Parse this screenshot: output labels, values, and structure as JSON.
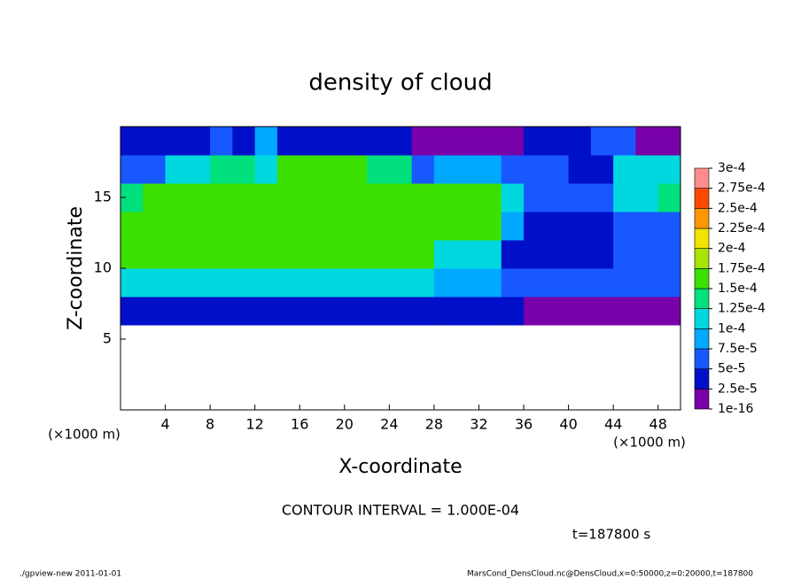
{
  "chart_data": {
    "type": "heatmap",
    "title": "density of cloud",
    "x_label": "X-coordinate",
    "y_label": "Z-coordinate",
    "x_unit": "(×1000 m)",
    "y_unit": "(×1000 m)",
    "contour_note": "CONTOUR INTERVAL = 1.000E-04",
    "time_note": "t=187800 s",
    "footer_left": "./gpview-new  2011-01-01",
    "footer_right": "MarsCond_DensCloud.nc@DensCloud,x=0:50000,z=0:20000,t=187800",
    "xlim": [
      0,
      50
    ],
    "ylim": [
      0,
      20
    ],
    "xticks": [
      4,
      8,
      12,
      16,
      20,
      24,
      28,
      32,
      36,
      40,
      44,
      48
    ],
    "yticks": [
      5,
      10,
      15
    ],
    "x_edges": [
      0,
      2,
      4,
      6,
      8,
      10,
      12,
      14,
      16,
      18,
      20,
      22,
      24,
      26,
      28,
      30,
      32,
      34,
      36,
      38,
      40,
      42,
      44,
      46,
      48,
      50
    ],
    "y_edges": [
      6,
      8,
      10,
      12,
      14,
      16,
      18,
      20
    ],
    "z": [
      [
        4e-05,
        4e-05,
        4e-05,
        4e-05,
        4e-05,
        4e-05,
        4e-05,
        4e-05,
        4e-05,
        4e-05,
        4e-05,
        4e-05,
        4e-05,
        4e-05,
        4e-05,
        4e-05,
        4e-05,
        4e-05,
        2e-05,
        2e-05,
        2e-05,
        2e-05,
        2e-05,
        2e-05,
        2e-05
      ],
      [
        0.00011,
        0.00011,
        0.00011,
        0.00011,
        0.00011,
        0.00012,
        0.00012,
        0.00012,
        0.00012,
        0.00012,
        0.00012,
        0.00012,
        0.00012,
        0.00012,
        8e-05,
        8e-05,
        8e-05,
        5e-05,
        5e-05,
        5e-05,
        5e-05,
        5e-05,
        5e-05,
        5e-05,
        5e-05
      ],
      [
        0.00015,
        0.00015,
        0.00015,
        0.00015,
        0.00015,
        0.00015,
        0.00015,
        0.00015,
        0.00015,
        0.00015,
        0.00015,
        0.00015,
        0.00015,
        0.00015,
        0.00011,
        0.00011,
        0.00011,
        4e-05,
        4e-05,
        4e-05,
        4e-05,
        4e-05,
        6e-05,
        6e-05,
        6e-05
      ],
      [
        0.00016,
        0.00016,
        0.00016,
        0.00016,
        0.00016,
        0.00016,
        0.00016,
        0.00016,
        0.00016,
        0.00016,
        0.00016,
        0.00016,
        0.00016,
        0.00016,
        0.00016,
        0.00016,
        0.00016,
        9e-05,
        4e-05,
        4e-05,
        4e-05,
        4e-05,
        7e-05,
        7e-05,
        7e-05
      ],
      [
        0.00013,
        0.000155,
        0.000155,
        0.000155,
        0.000155,
        0.000155,
        0.000155,
        0.000155,
        0.000155,
        0.000155,
        0.000155,
        0.000155,
        0.000155,
        0.000155,
        0.000155,
        0.000155,
        0.000155,
        0.00012,
        5e-05,
        5e-05,
        5e-05,
        5e-05,
        0.00011,
        0.00011,
        0.00014
      ],
      [
        6e-05,
        6e-05,
        0.0001,
        0.0001,
        0.00013,
        0.00013,
        0.00012,
        0.00015,
        0.00015,
        0.00015,
        0.00015,
        0.00013,
        0.00013,
        5e-05,
        8e-05,
        8e-05,
        8e-05,
        5e-05,
        5e-05,
        5e-05,
        4e-05,
        4e-05,
        0.00012,
        0.00012,
        0.00012
      ],
      [
        3e-05,
        3e-05,
        4e-05,
        4e-05,
        5e-05,
        4e-05,
        8e-05,
        4e-05,
        3e-05,
        4e-05,
        4e-05,
        3e-05,
        3e-05,
        2e-05,
        2e-05,
        1e-05,
        1e-05,
        2e-05,
        3e-05,
        4e-05,
        4e-05,
        5e-05,
        5e-05,
        2e-05,
        2e-05
      ]
    ],
    "colorbar": {
      "levels": [
        {
          "value": 1e-16,
          "label": "1e-16"
        },
        {
          "value": 2.5e-05,
          "label": "2.5e-5"
        },
        {
          "value": 5e-05,
          "label": "5e-5"
        },
        {
          "value": 7.5e-05,
          "label": "7.5e-5"
        },
        {
          "value": 0.0001,
          "label": "1e-4"
        },
        {
          "value": 0.000125,
          "label": "1.25e-4"
        },
        {
          "value": 0.00015,
          "label": "1.5e-4"
        },
        {
          "value": 0.000175,
          "label": "1.75e-4"
        },
        {
          "value": 0.0002,
          "label": "2e-4"
        },
        {
          "value": 0.000225,
          "label": "2.25e-4"
        },
        {
          "value": 0.00025,
          "label": "2.5e-4"
        },
        {
          "value": 0.000275,
          "label": "2.75e-4"
        },
        {
          "value": 0.0003,
          "label": "3e-4"
        }
      ],
      "colors": [
        "#7800a8",
        "#0010c8",
        "#1858ff",
        "#00a8ff",
        "#00d8e0",
        "#00e07c",
        "#3ce000",
        "#a8e400",
        "#f0e400",
        "#ff9800",
        "#ff4800",
        "#ff8c8c"
      ]
    }
  }
}
